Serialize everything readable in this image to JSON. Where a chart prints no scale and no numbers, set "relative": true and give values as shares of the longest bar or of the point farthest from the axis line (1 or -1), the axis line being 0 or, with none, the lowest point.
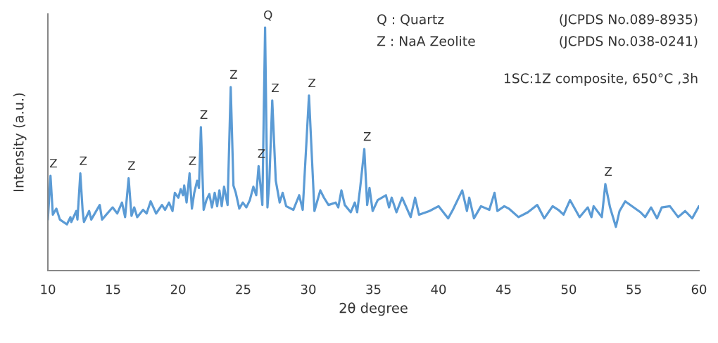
{
  "chart_data": {
    "type": "line",
    "relative": true,
    "xlabel": "2θ degree",
    "ylabel": "Intensity (a.u.)",
    "xlim": [
      10,
      60
    ],
    "xticks": [
      10,
      15,
      20,
      25,
      30,
      35,
      40,
      45,
      50,
      55,
      60
    ],
    "grid": false,
    "marker": "none",
    "line_style": "solid",
    "series": [
      {
        "color": "#5b9bd5",
        "x": [
          10.0,
          10.2,
          10.38,
          10.65,
          10.92,
          11.46,
          11.73,
          11.8,
          12.18,
          12.27,
          12.49,
          12.67,
          12.77,
          13.17,
          13.33,
          13.98,
          14.16,
          14.97,
          15.33,
          15.69,
          15.93,
          16.2,
          16.42,
          16.63,
          16.86,
          17.31,
          17.58,
          17.89,
          18.31,
          18.76,
          19.0,
          19.3,
          19.57,
          19.75,
          20.02,
          20.2,
          20.38,
          20.47,
          20.65,
          20.88,
          21.06,
          21.24,
          21.46,
          21.6,
          21.75,
          21.96,
          22.17,
          22.4,
          22.6,
          22.81,
          23.0,
          23.17,
          23.35,
          23.53,
          23.8,
          24.04,
          24.25,
          24.43,
          24.7,
          24.97,
          25.24,
          25.51,
          25.78,
          26.0,
          26.18,
          26.47,
          26.68,
          26.86,
          27.0,
          27.23,
          27.5,
          27.8,
          28.03,
          28.3,
          28.85,
          29.3,
          29.57,
          30.05,
          30.47,
          30.92,
          31.2,
          31.55,
          32.1,
          32.3,
          32.54,
          32.8,
          33.26,
          33.57,
          33.75,
          33.98,
          34.3,
          34.52,
          34.7,
          34.94,
          35.33,
          35.96,
          36.2,
          36.4,
          36.77,
          37.2,
          37.86,
          38.2,
          38.5,
          39.3,
          40.0,
          40.74,
          41.1,
          41.82,
          42.18,
          42.36,
          42.72,
          43.26,
          43.9,
          44.3,
          44.52,
          45.05,
          45.4,
          46.14,
          46.86,
          47.58,
          48.12,
          48.76,
          49.2,
          49.6,
          50.1,
          50.83,
          51.46,
          51.74,
          51.91,
          52.54,
          52.81,
          53.17,
          53.62,
          53.9,
          54.34,
          54.98,
          55.51,
          55.87,
          56.32,
          56.78,
          57.14,
          57.77,
          58.4,
          58.94,
          59.48,
          60.0
        ],
        "values": [
          0.21,
          0.39,
          0.23,
          0.255,
          0.21,
          0.19,
          0.22,
          0.2,
          0.245,
          0.21,
          0.4,
          0.245,
          0.2,
          0.245,
          0.21,
          0.27,
          0.21,
          0.26,
          0.235,
          0.28,
          0.22,
          0.38,
          0.225,
          0.26,
          0.22,
          0.25,
          0.235,
          0.285,
          0.235,
          0.27,
          0.25,
          0.28,
          0.245,
          0.32,
          0.3,
          0.335,
          0.31,
          0.35,
          0.28,
          0.4,
          0.255,
          0.32,
          0.37,
          0.34,
          0.59,
          0.25,
          0.29,
          0.315,
          0.26,
          0.32,
          0.265,
          0.33,
          0.265,
          0.345,
          0.27,
          0.755,
          0.35,
          0.32,
          0.255,
          0.28,
          0.26,
          0.29,
          0.345,
          0.31,
          0.43,
          0.27,
          1.0,
          0.26,
          0.36,
          0.7,
          0.37,
          0.28,
          0.32,
          0.265,
          0.25,
          0.31,
          0.25,
          0.72,
          0.245,
          0.33,
          0.3,
          0.27,
          0.28,
          0.26,
          0.33,
          0.27,
          0.24,
          0.28,
          0.24,
          0.34,
          0.5,
          0.27,
          0.34,
          0.245,
          0.29,
          0.31,
          0.26,
          0.3,
          0.24,
          0.3,
          0.22,
          0.3,
          0.23,
          0.245,
          0.265,
          0.215,
          0.25,
          0.33,
          0.245,
          0.3,
          0.215,
          0.265,
          0.25,
          0.32,
          0.245,
          0.265,
          0.255,
          0.22,
          0.24,
          0.27,
          0.215,
          0.265,
          0.25,
          0.23,
          0.29,
          0.22,
          0.26,
          0.22,
          0.265,
          0.22,
          0.356,
          0.26,
          0.18,
          0.245,
          0.285,
          0.26,
          0.24,
          0.22,
          0.26,
          0.215,
          0.26,
          0.265,
          0.22,
          0.245,
          0.215,
          0.265
        ]
      }
    ],
    "annotations": [
      "Q : Quartz",
      "(JCPDS No.089-8935)",
      "Z : NaA Zeolite",
      "(JCPDS No.038-0241)",
      "1SC:1Z composite, 650°C ,3h",
      {
        "text": "Z",
        "x": 10.2,
        "y": 0.39
      },
      {
        "text": "Z",
        "x": 12.49,
        "y": 0.4
      },
      {
        "text": "Z",
        "x": 16.2,
        "y": 0.38
      },
      {
        "text": "Z",
        "x": 20.88,
        "y": 0.4
      },
      {
        "text": "Z",
        "x": 21.75,
        "y": 0.59
      },
      {
        "text": "Z",
        "x": 24.04,
        "y": 0.755
      },
      {
        "text": "Z",
        "x": 26.18,
        "y": 0.43
      },
      {
        "text": "Q",
        "x": 26.68,
        "y": 1.0
      },
      {
        "text": "Z",
        "x": 27.23,
        "y": 0.7
      },
      {
        "text": "Z",
        "x": 30.05,
        "y": 0.72
      },
      {
        "text": "Z",
        "x": 34.3,
        "y": 0.5
      },
      {
        "text": "Z",
        "x": 52.81,
        "y": 0.356
      }
    ]
  }
}
